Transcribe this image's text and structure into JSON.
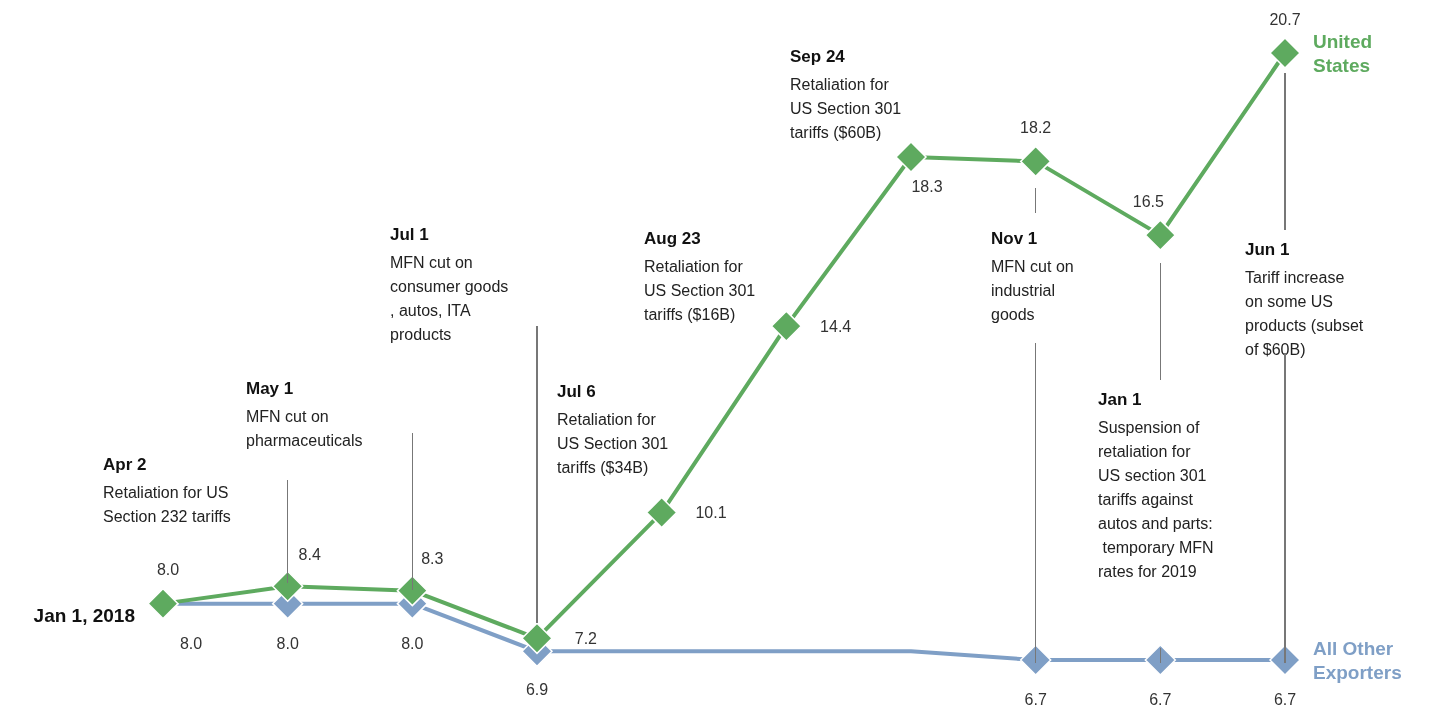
{
  "chart_data": {
    "type": "line",
    "categories": [
      null,
      null,
      null,
      null,
      null,
      null,
      null,
      null,
      null,
      null
    ],
    "series": [
      {
        "name": "United States",
        "color": "#5eaa5f",
        "values": [
          8.0,
          8.4,
          8.3,
          7.2,
          10.1,
          14.4,
          18.3,
          18.2,
          16.5,
          20.7
        ],
        "value_labels": [
          "8.0",
          "8.4",
          "8.3",
          "7.2",
          "10.1",
          "14.4",
          "18.3",
          "18.2",
          "16.5",
          "20.7"
        ]
      },
      {
        "name": "All Other Exporters",
        "color": "#7f9fc6",
        "values": [
          8.0,
          8.0,
          8.0,
          6.9,
          6.9,
          6.9,
          6.9,
          6.7,
          6.7,
          6.7
        ],
        "value_labels": [
          "8.0",
          "8.0",
          "8.0",
          "6.9",
          null,
          null,
          null,
          "6.7",
          "6.7",
          "6.7"
        ]
      }
    ],
    "marker": "diamond",
    "grid": false,
    "legend": false,
    "annotations": [
      "Jan 1, 2018",
      "Apr 2\nRetaliation for US Section 232 tariffs",
      "May 1\nMFN cut on pharmaceuticals",
      "Jul 1\nMFN cut on consumer goods, autos, ITA products",
      "Jul 6\nRetaliation for US Section 301 tariffs ($34B)",
      "Aug 23\nRetaliation for US Section 301 tariffs ($16B)",
      "Sep 24\nRetaliation for US Section 301 tariffs ($60B)",
      "Nov 1\nMFN cut on industrial goods",
      "Jan 1\nSuspension of retaliation for US section 301 tariffs against autos and parts: temporary MFN rates for 2019",
      "Jun 1\nTariff increase on some US products (subset of $60B)"
    ]
  }
}
